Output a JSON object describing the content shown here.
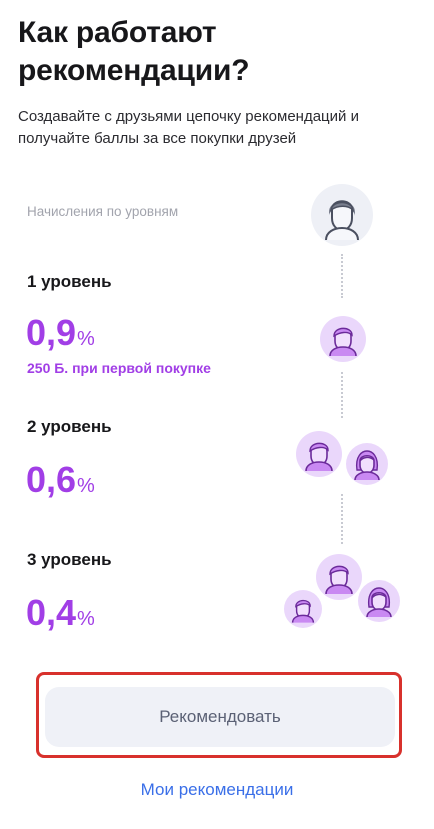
{
  "header": {
    "title": "Как работают рекомендации?",
    "subtitle": "Создавайте с друзьями цепочку рекомендаций и получайте баллы за все покупки друзей"
  },
  "levels_caption": "Начисления по уровням",
  "levels": [
    {
      "title": "1 уровень",
      "percent_value": "0,9",
      "percent_sign": "%",
      "bonus": "250 Б. при первой покупке"
    },
    {
      "title": "2 уровень",
      "percent_value": "0,6",
      "percent_sign": "%"
    },
    {
      "title": "3 уровень",
      "percent_value": "0,4",
      "percent_sign": "%"
    }
  ],
  "actions": {
    "recommend_label": "Рекомендовать",
    "my_recommendations_label": "Мои рекомендации"
  },
  "icons": {
    "user": "user-avatar-icon",
    "male": "male-friend-icon",
    "female": "female-friend-icon"
  },
  "colors": {
    "accent_purple": "#a13ee6",
    "link_blue": "#3a6fe8",
    "highlight_red": "#d8312c",
    "button_bg": "#eff1f7"
  }
}
